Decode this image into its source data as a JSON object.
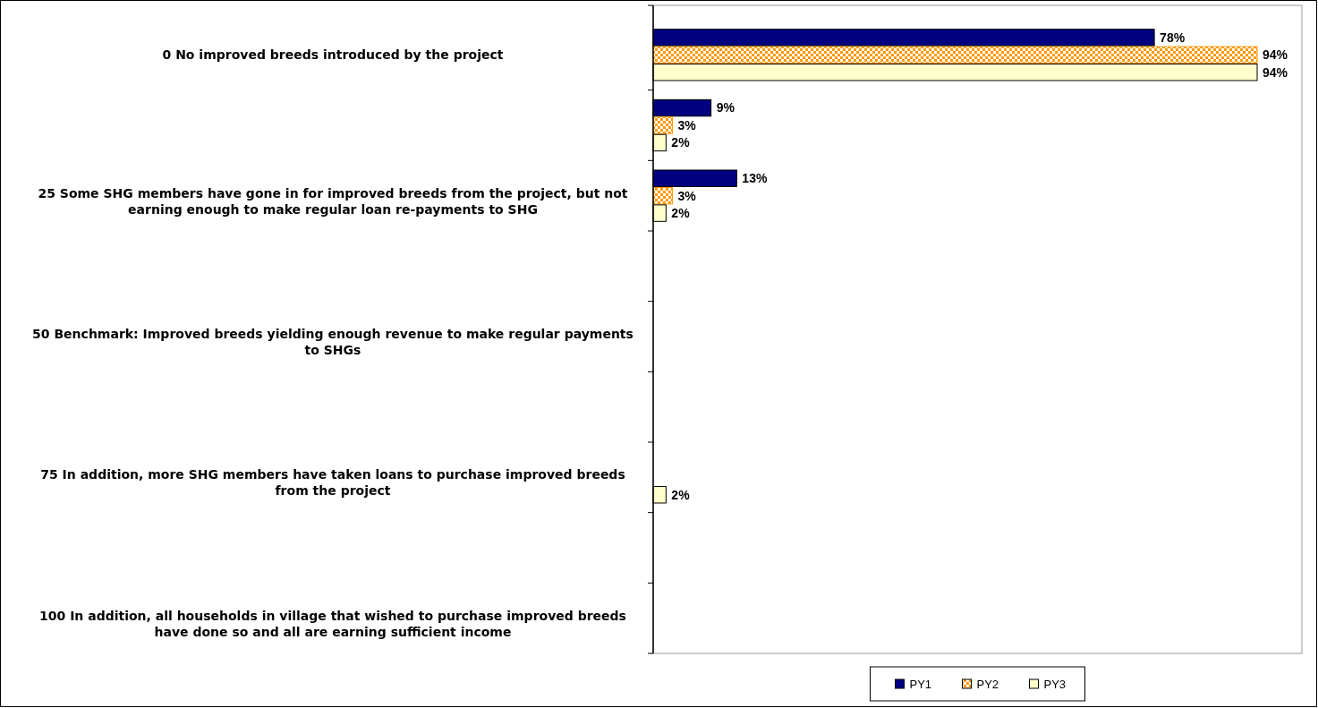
{
  "chart_data": {
    "type": "bar",
    "orientation": "horizontal",
    "categories": [
      "0 No improved breeds introduced by the project",
      null,
      "25 Some SHG members have gone in for improved breeds from the project, but not earning enough to make regular loan re-payments to SHG",
      null,
      "50 Benchmark: Improved breeds yielding enough revenue to make regular payments to SHGs",
      null,
      "75 In addition, more SHG members have taken loans to purchase improved breeds from the project",
      null,
      "100 In addition, all households in village that wished to purchase improved breeds have done so and all are earning sufficient income"
    ],
    "series": [
      {
        "name": "PY1",
        "color": "#000080",
        "values": [
          78,
          9,
          13,
          null,
          null,
          null,
          null,
          null,
          null
        ],
        "value_labels": [
          "78%",
          "9%",
          "13%",
          null,
          null,
          null,
          null,
          null,
          null
        ]
      },
      {
        "name": "PY2",
        "color": "#ff9900",
        "values": [
          94,
          3,
          3,
          null,
          null,
          null,
          null,
          null,
          null
        ],
        "value_labels": [
          "94%",
          "3%",
          "3%",
          null,
          null,
          null,
          null,
          null,
          null
        ]
      },
      {
        "name": "PY3",
        "color": "#ffffcc",
        "values": [
          94,
          2,
          2,
          null,
          null,
          null,
          2,
          null,
          null
        ],
        "value_labels": [
          "94%",
          "2%",
          "2%",
          null,
          null,
          null,
          "2%",
          null,
          null
        ]
      }
    ],
    "legend": "bottom"
  }
}
